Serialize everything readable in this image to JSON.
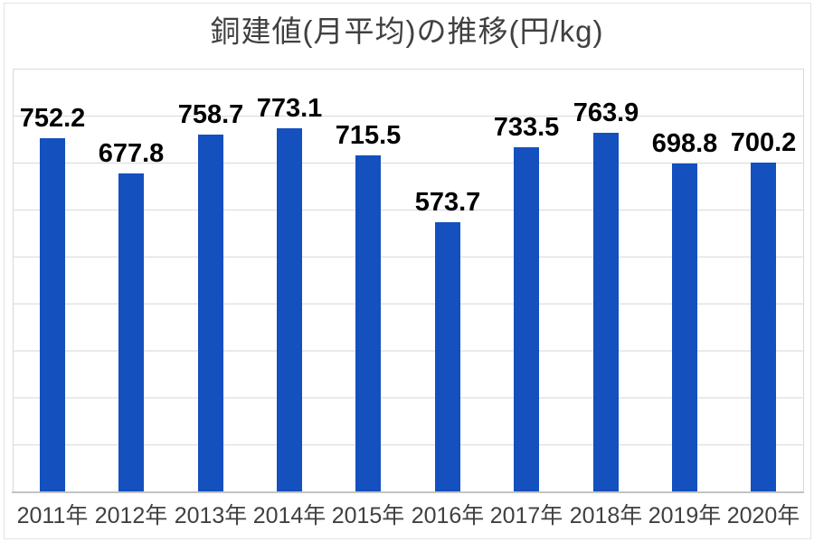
{
  "chart_data": {
    "type": "bar",
    "title": "銅建値(月平均)の推移(円/kg)",
    "categories": [
      "2011年",
      "2012年",
      "2013年",
      "2014年",
      "2015年",
      "2016年",
      "2017年",
      "2018年",
      "2019年",
      "2020年"
    ],
    "values": [
      752.2,
      677.8,
      758.7,
      773.1,
      715.5,
      573.7,
      733.5,
      763.9,
      698.8,
      700.2
    ],
    "xlabel": "",
    "ylabel": "",
    "ylim": [
      0,
      900
    ],
    "gridline_interval": 100,
    "grid": true,
    "legend_position": "none",
    "y_axis_tick_labels_visible": false,
    "data_labels_visible": true,
    "colors": {
      "bar": "#1450BE",
      "gridline": "#D9D9D9",
      "axis_line": "#C3C3C3",
      "title_text": "#404040",
      "tick_label_text": "#404040",
      "data_label_text": "#000000",
      "background": "#FFFFFF",
      "chart_border": "#E3E3E3"
    }
  }
}
